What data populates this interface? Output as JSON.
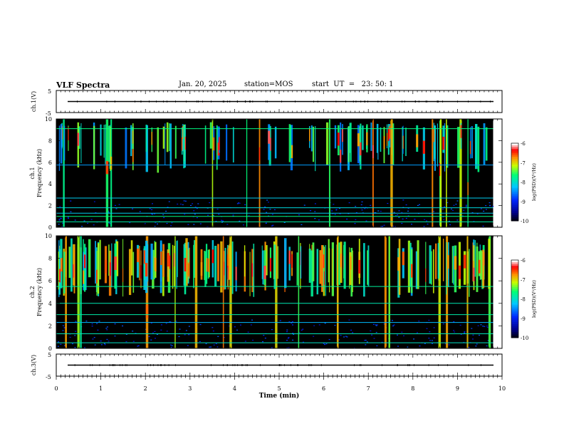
{
  "header": {
    "title": "VLF Spectra",
    "date": "Jan. 20, 2025",
    "station": "station=MOS",
    "start_ut": "start  UT  =   23: 50: 1"
  },
  "chart_data": [
    {
      "type": "line",
      "name": "waveform-ch1",
      "ylabel": "ch.1(V)",
      "ylim": [
        -5,
        5
      ],
      "yticks": [
        "5",
        "-5"
      ],
      "xlim": [
        0,
        10
      ],
      "baseline_value": 0
    },
    {
      "type": "heatmap",
      "name": "spectrogram-ch1",
      "ylabel": "ch.1\nFrequency (kHz)",
      "ylim": [
        0,
        10
      ],
      "yticks": [
        "0",
        "2",
        "4",
        "6",
        "8",
        "10"
      ],
      "xlim": [
        0,
        10
      ],
      "data_end_min": 9.8,
      "colorbar": {
        "label": "log(PSD)(V²/Hz)",
        "range": [
          -10,
          -6
        ],
        "ticks": [
          "-6",
          "-7",
          "-8",
          "-9",
          "-10"
        ]
      },
      "horizontal_lines_khz": [
        0.5,
        1.0,
        1.3,
        1.8,
        2.7,
        5.75,
        9.1
      ]
    },
    {
      "type": "heatmap",
      "name": "spectrogram-ch2",
      "ylabel": "ch.2\nFrequency (kHz)",
      "ylim": [
        0,
        10
      ],
      "yticks": [
        "0",
        "2",
        "4",
        "6",
        "8",
        "10"
      ],
      "xlim": [
        0,
        10
      ],
      "data_end_min": 9.8,
      "colorbar": {
        "label": "log(PSD)(V²/Hz)",
        "range": [
          -10,
          -6
        ],
        "ticks": [
          "-6",
          "-7",
          "-8",
          "-9",
          "-10"
        ]
      },
      "horizontal_lines_khz": [
        0.5,
        1.3,
        2.3,
        3.0,
        4.0,
        5.5
      ]
    },
    {
      "type": "line",
      "name": "waveform-ch3",
      "ylabel": "ch.3(V)",
      "ylim": [
        -5,
        5
      ],
      "yticks": [
        "5",
        "-5"
      ],
      "xlim": [
        0,
        10
      ],
      "xlabel": "Time  (min)",
      "xticks": [
        "0",
        "1",
        "2",
        "3",
        "4",
        "5",
        "6",
        "7",
        "8",
        "9",
        "10"
      ],
      "baseline_value": 0
    }
  ]
}
